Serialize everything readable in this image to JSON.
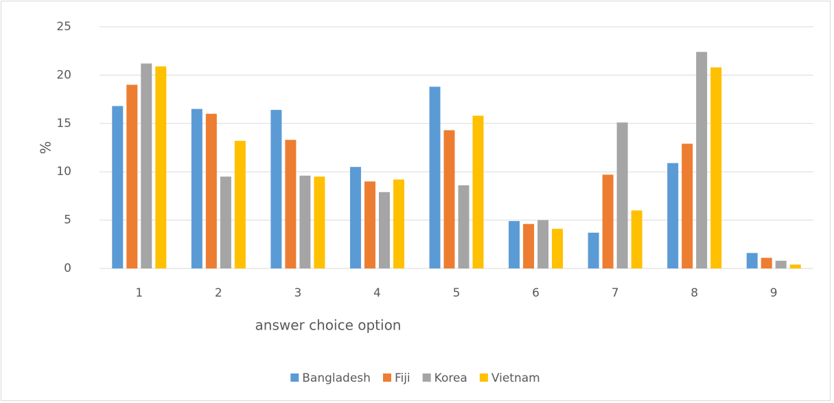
{
  "chart_data": {
    "type": "bar",
    "xlabel": "answer choice option",
    "ylabel": "%",
    "categories": [
      "1",
      "2",
      "3",
      "4",
      "5",
      "6",
      "7",
      "8",
      "9"
    ],
    "series": [
      {
        "name": "Bangladesh",
        "color": "#5b9bd5",
        "values": [
          16.8,
          16.5,
          16.4,
          10.5,
          18.8,
          4.9,
          3.7,
          10.9,
          1.6
        ]
      },
      {
        "name": "Fiji",
        "color": "#ed7d31",
        "values": [
          19.0,
          16.0,
          13.3,
          9.0,
          14.3,
          4.6,
          9.7,
          12.9,
          1.1
        ]
      },
      {
        "name": "Korea",
        "color": "#a5a5a5",
        "values": [
          21.2,
          9.5,
          9.6,
          7.9,
          8.6,
          5.0,
          15.1,
          22.4,
          0.8
        ]
      },
      {
        "name": "Vietnam",
        "color": "#ffc000",
        "values": [
          20.9,
          13.2,
          9.5,
          9.2,
          15.8,
          4.1,
          6.0,
          20.8,
          0.4
        ]
      }
    ],
    "ylim": [
      0,
      25
    ],
    "yticks": [
      0,
      5,
      10,
      15,
      20,
      25
    ],
    "grid": true,
    "legend": "bottom"
  }
}
